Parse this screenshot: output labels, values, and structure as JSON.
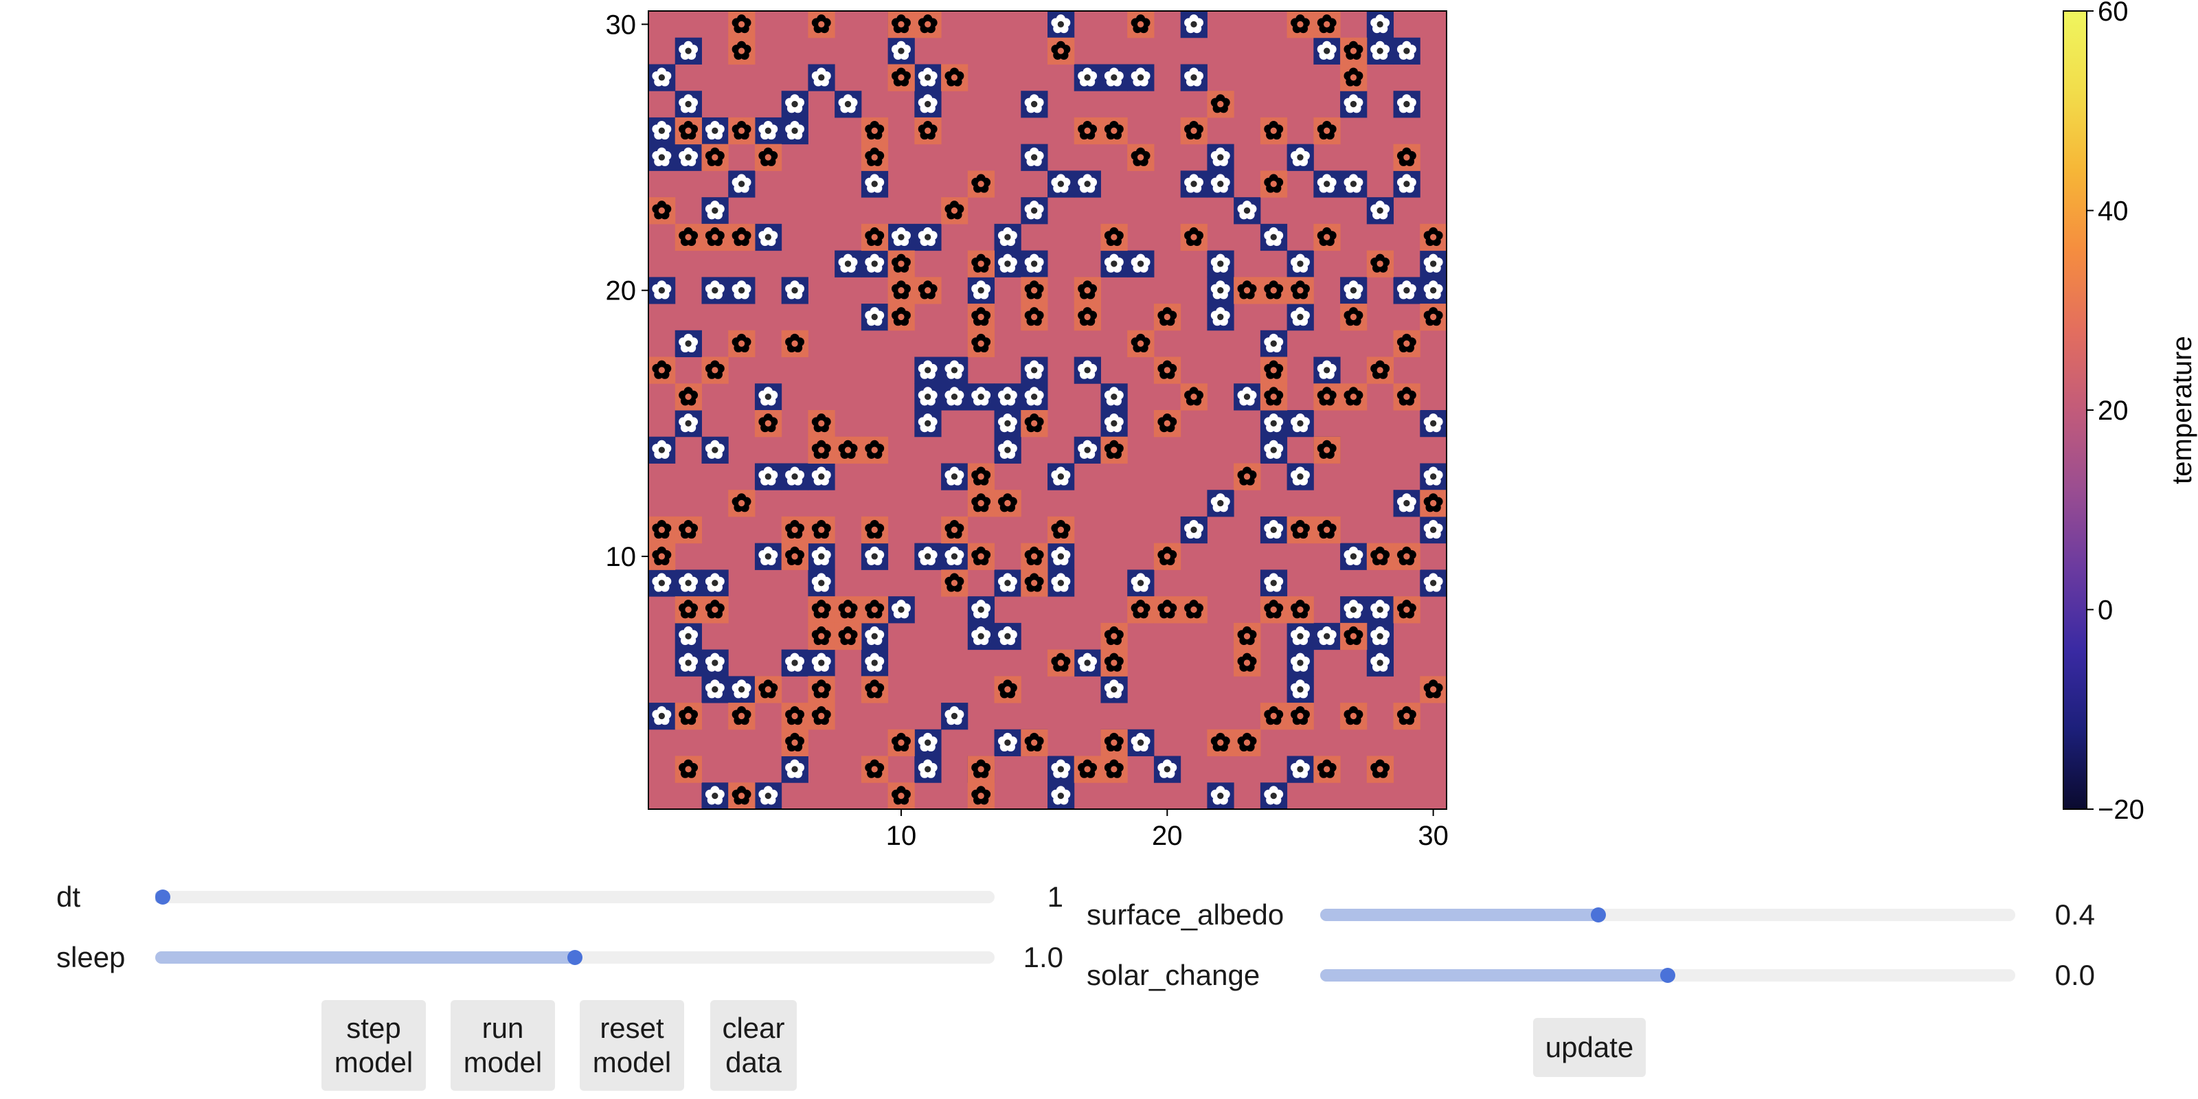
{
  "chart_data": {
    "type": "heatmap",
    "grid_size": [
      30,
      30
    ],
    "background_temperature": 22,
    "x_ticks": [
      "10",
      "20",
      "30"
    ],
    "y_ticks": [
      "10",
      "20",
      "30"
    ],
    "xlim": [
      0.5,
      30.5
    ],
    "ylim": [
      0.5,
      30.5
    ],
    "agents": {
      "white_daisy_color": "#1e2a7a",
      "black_daisy_color": "#e07055",
      "white": [
        [
          1,
          28
        ],
        [
          1,
          26
        ],
        [
          1,
          25
        ],
        [
          1,
          20
        ],
        [
          1,
          14
        ],
        [
          1,
          9
        ],
        [
          1,
          4
        ],
        [
          2,
          29
        ],
        [
          2,
          27
        ],
        [
          2,
          25
        ],
        [
          2,
          18
        ],
        [
          2,
          15
        ],
        [
          2,
          9
        ],
        [
          2,
          7
        ],
        [
          2,
          6
        ],
        [
          3,
          26
        ],
        [
          3,
          23
        ],
        [
          3,
          20
        ],
        [
          3,
          14
        ],
        [
          3,
          9
        ],
        [
          3,
          6
        ],
        [
          3,
          5
        ],
        [
          3,
          1
        ],
        [
          4,
          24
        ],
        [
          4,
          20
        ],
        [
          4,
          5
        ],
        [
          5,
          26
        ],
        [
          5,
          22
        ],
        [
          5,
          16
        ],
        [
          5,
          13
        ],
        [
          5,
          10
        ],
        [
          5,
          1
        ],
        [
          6,
          27
        ],
        [
          6,
          26
        ],
        [
          6,
          20
        ],
        [
          6,
          13
        ],
        [
          6,
          6
        ],
        [
          6,
          2
        ],
        [
          7,
          28
        ],
        [
          7,
          13
        ],
        [
          7,
          10
        ],
        [
          7,
          9
        ],
        [
          7,
          6
        ],
        [
          8,
          27
        ],
        [
          8,
          21
        ],
        [
          9,
          24
        ],
        [
          9,
          21
        ],
        [
          9,
          19
        ],
        [
          9,
          10
        ],
        [
          9,
          7
        ],
        [
          9,
          6
        ],
        [
          10,
          30
        ],
        [
          10,
          29
        ],
        [
          10,
          22
        ],
        [
          10,
          8
        ],
        [
          11,
          28
        ],
        [
          11,
          27
        ],
        [
          11,
          22
        ],
        [
          11,
          17
        ],
        [
          11,
          16
        ],
        [
          11,
          15
        ],
        [
          11,
          10
        ],
        [
          11,
          3
        ],
        [
          11,
          2
        ],
        [
          12,
          17
        ],
        [
          12,
          16
        ],
        [
          12,
          13
        ],
        [
          12,
          10
        ],
        [
          12,
          4
        ],
        [
          13,
          20
        ],
        [
          13,
          16
        ],
        [
          13,
          8
        ],
        [
          13,
          7
        ],
        [
          13,
          2
        ],
        [
          14,
          22
        ],
        [
          14,
          21
        ],
        [
          14,
          16
        ],
        [
          14,
          15
        ],
        [
          14,
          14
        ],
        [
          14,
          9
        ],
        [
          14,
          7
        ],
        [
          14,
          3
        ],
        [
          15,
          27
        ],
        [
          15,
          25
        ],
        [
          15,
          23
        ],
        [
          15,
          21
        ],
        [
          15,
          17
        ],
        [
          15,
          16
        ],
        [
          15,
          3
        ],
        [
          16,
          30
        ],
        [
          16,
          24
        ],
        [
          16,
          13
        ],
        [
          16,
          10
        ],
        [
          16,
          9
        ],
        [
          16,
          2
        ],
        [
          16,
          1
        ],
        [
          17,
          28
        ],
        [
          17,
          24
        ],
        [
          17,
          17
        ],
        [
          17,
          14
        ],
        [
          17,
          6
        ],
        [
          18,
          28
        ],
        [
          18,
          21
        ],
        [
          18,
          16
        ],
        [
          18,
          15
        ],
        [
          18,
          5
        ],
        [
          18,
          3
        ],
        [
          19,
          28
        ],
        [
          19,
          21
        ],
        [
          19,
          9
        ],
        [
          19,
          3
        ],
        [
          20,
          2
        ],
        [
          21,
          30
        ],
        [
          21,
          28
        ],
        [
          21,
          24
        ],
        [
          21,
          11
        ],
        [
          22,
          25
        ],
        [
          22,
          24
        ],
        [
          22,
          21
        ],
        [
          22,
          20
        ],
        [
          22,
          19
        ],
        [
          22,
          12
        ],
        [
          22,
          1
        ],
        [
          23,
          23
        ],
        [
          23,
          16
        ],
        [
          24,
          22
        ],
        [
          24,
          18
        ],
        [
          24,
          15
        ],
        [
          24,
          14
        ],
        [
          24,
          11
        ],
        [
          24,
          9
        ],
        [
          24,
          1
        ],
        [
          25,
          25
        ],
        [
          25,
          21
        ],
        [
          25,
          19
        ],
        [
          25,
          15
        ],
        [
          25,
          13
        ],
        [
          25,
          7
        ],
        [
          25,
          6
        ],
        [
          25,
          5
        ],
        [
          25,
          2
        ],
        [
          26,
          29
        ],
        [
          26,
          24
        ],
        [
          26,
          17
        ],
        [
          26,
          14
        ],
        [
          26,
          7
        ],
        [
          27,
          27
        ],
        [
          27,
          24
        ],
        [
          27,
          20
        ],
        [
          27,
          10
        ],
        [
          27,
          8
        ],
        [
          28,
          30
        ],
        [
          28,
          29
        ],
        [
          28,
          23
        ],
        [
          28,
          8
        ],
        [
          28,
          7
        ],
        [
          28,
          6
        ],
        [
          29,
          29
        ],
        [
          29,
          27
        ],
        [
          29,
          24
        ],
        [
          29,
          20
        ],
        [
          29,
          12
        ],
        [
          30,
          21
        ],
        [
          30,
          20
        ],
        [
          30,
          15
        ],
        [
          30,
          13
        ],
        [
          30,
          11
        ],
        [
          30,
          9
        ]
      ],
      "black": [
        [
          1,
          23
        ],
        [
          1,
          17
        ],
        [
          1,
          11
        ],
        [
          1,
          10
        ],
        [
          2,
          26
        ],
        [
          2,
          22
        ],
        [
          2,
          16
        ],
        [
          2,
          11
        ],
        [
          2,
          8
        ],
        [
          2,
          4
        ],
        [
          2,
          2
        ],
        [
          3,
          25
        ],
        [
          3,
          22
        ],
        [
          3,
          17
        ],
        [
          3,
          8
        ],
        [
          4,
          30
        ],
        [
          4,
          29
        ],
        [
          4,
          26
        ],
        [
          4,
          22
        ],
        [
          4,
          18
        ],
        [
          4,
          12
        ],
        [
          4,
          4
        ],
        [
          4,
          1
        ],
        [
          5,
          25
        ],
        [
          5,
          15
        ],
        [
          5,
          5
        ],
        [
          6,
          11
        ],
        [
          6,
          10
        ],
        [
          6,
          4
        ],
        [
          6,
          3
        ],
        [
          6,
          18
        ],
        [
          7,
          30
        ],
        [
          7,
          15
        ],
        [
          7,
          14
        ],
        [
          7,
          11
        ],
        [
          7,
          8
        ],
        [
          7,
          7
        ],
        [
          7,
          5
        ],
        [
          7,
          4
        ],
        [
          8,
          14
        ],
        [
          8,
          8
        ],
        [
          8,
          7
        ],
        [
          9,
          26
        ],
        [
          9,
          25
        ],
        [
          9,
          22
        ],
        [
          9,
          14
        ],
        [
          9,
          11
        ],
        [
          9,
          8
        ],
        [
          9,
          5
        ],
        [
          9,
          2
        ],
        [
          10,
          30
        ],
        [
          10,
          28
        ],
        [
          10,
          21
        ],
        [
          10,
          20
        ],
        [
          10,
          19
        ],
        [
          10,
          3
        ],
        [
          10,
          1
        ],
        [
          11,
          30
        ],
        [
          11,
          26
        ],
        [
          11,
          20
        ],
        [
          12,
          28
        ],
        [
          12,
          11
        ],
        [
          12,
          9
        ],
        [
          12,
          23
        ],
        [
          13,
          24
        ],
        [
          13,
          21
        ],
        [
          13,
          19
        ],
        [
          13,
          18
        ],
        [
          13,
          13
        ],
        [
          13,
          12
        ],
        [
          13,
          10
        ],
        [
          13,
          2
        ],
        [
          13,
          1
        ],
        [
          14,
          12
        ],
        [
          14,
          5
        ],
        [
          15,
          20
        ],
        [
          15,
          19
        ],
        [
          15,
          15
        ],
        [
          15,
          10
        ],
        [
          15,
          9
        ],
        [
          15,
          3
        ],
        [
          16,
          29
        ],
        [
          16,
          11
        ],
        [
          16,
          6
        ],
        [
          17,
          26
        ],
        [
          17,
          20
        ],
        [
          17,
          19
        ],
        [
          17,
          2
        ],
        [
          18,
          26
        ],
        [
          18,
          22
        ],
        [
          18,
          14
        ],
        [
          18,
          7
        ],
        [
          18,
          6
        ],
        [
          18,
          3
        ],
        [
          18,
          2
        ],
        [
          19,
          30
        ],
        [
          19,
          25
        ],
        [
          19,
          18
        ],
        [
          19,
          8
        ],
        [
          20,
          19
        ],
        [
          20,
          17
        ],
        [
          20,
          15
        ],
        [
          20,
          10
        ],
        [
          20,
          8
        ],
        [
          21,
          26
        ],
        [
          21,
          22
        ],
        [
          21,
          16
        ],
        [
          21,
          8
        ],
        [
          22,
          27
        ],
        [
          22,
          3
        ],
        [
          23,
          20
        ],
        [
          23,
          13
        ],
        [
          23,
          7
        ],
        [
          23,
          6
        ],
        [
          23,
          3
        ],
        [
          24,
          26
        ],
        [
          24,
          24
        ],
        [
          24,
          20
        ],
        [
          24,
          17
        ],
        [
          24,
          16
        ],
        [
          24,
          8
        ],
        [
          24,
          4
        ],
        [
          25,
          30
        ],
        [
          25,
          20
        ],
        [
          25,
          8
        ],
        [
          25,
          11
        ],
        [
          25,
          4
        ],
        [
          26,
          30
        ],
        [
          26,
          26
        ],
        [
          26,
          22
        ],
        [
          26,
          16
        ],
        [
          26,
          14
        ],
        [
          26,
          11
        ],
        [
          26,
          2
        ],
        [
          27,
          29
        ],
        [
          27,
          28
        ],
        [
          27,
          19
        ],
        [
          27,
          16
        ],
        [
          27,
          7
        ],
        [
          27,
          4
        ],
        [
          28,
          21
        ],
        [
          28,
          17
        ],
        [
          28,
          10
        ],
        [
          28,
          2
        ],
        [
          29,
          25
        ],
        [
          29,
          18
        ],
        [
          29,
          16
        ],
        [
          29,
          10
        ],
        [
          29,
          8
        ],
        [
          29,
          4
        ],
        [
          30,
          22
        ],
        [
          30,
          19
        ],
        [
          30,
          12
        ],
        [
          30,
          5
        ]
      ]
    },
    "colorbar": {
      "label": "temperature",
      "min": -20,
      "max": 60,
      "ticks": [
        {
          "value": -20,
          "label": "−20"
        },
        {
          "value": 0,
          "label": "0"
        },
        {
          "value": 20,
          "label": "20"
        },
        {
          "value": 40,
          "label": "40"
        },
        {
          "value": 60,
          "label": "60"
        }
      ],
      "colormap": [
        "#0a0a2e",
        "#1c1f7a",
        "#3a2aa3",
        "#6a3aa0",
        "#9a4d91",
        "#c25b7a",
        "#e36e5e",
        "#f58d3f",
        "#f6b637",
        "#f2dd4b",
        "#f0f55e"
      ]
    }
  },
  "controls": {
    "dt": {
      "label": "dt",
      "value": "1",
      "fraction": 0.0
    },
    "sleep": {
      "label": "sleep",
      "value": "1.0",
      "fraction": 0.5
    },
    "surface_albedo": {
      "label": "surface_albedo",
      "value": "0.4",
      "fraction": 0.4
    },
    "solar_change": {
      "label": "solar_change",
      "value": "0.0",
      "fraction": 0.5
    }
  },
  "buttons": {
    "step": [
      "step",
      "model"
    ],
    "run": [
      "run",
      "model"
    ],
    "reset": [
      "reset",
      "model"
    ],
    "clear": [
      "clear",
      "data"
    ],
    "update": "update"
  }
}
